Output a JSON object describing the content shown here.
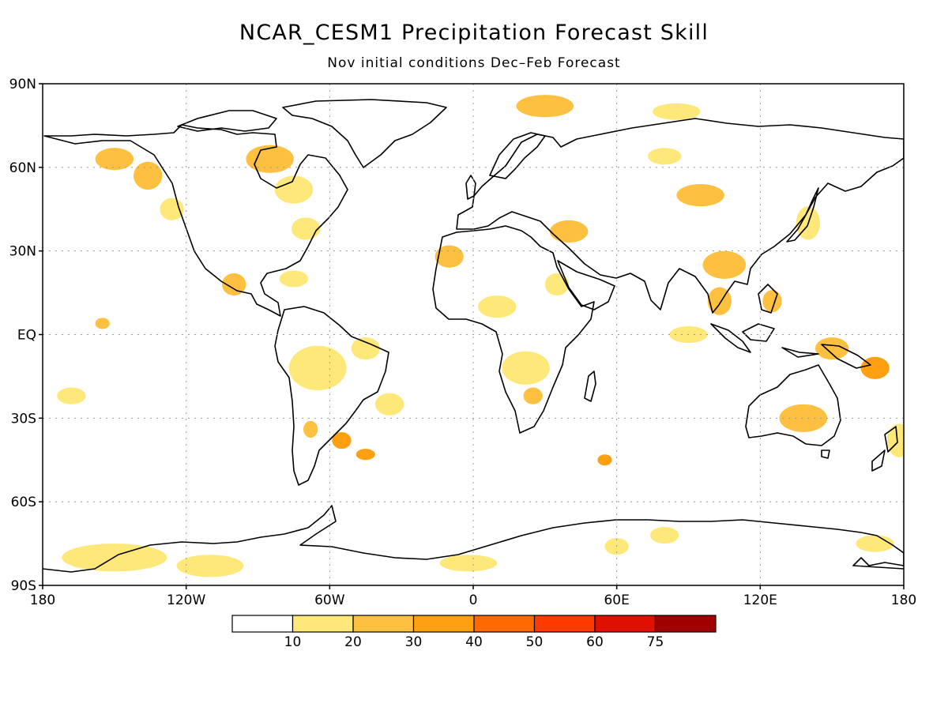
{
  "title": "NCAR_CESM1 Precipitation Forecast Skill",
  "subtitle": "Nov initial conditions   Dec–Feb Forecast",
  "map": {
    "lon_range": [
      -180,
      180
    ],
    "lat_range": [
      -90,
      90
    ],
    "grid": "dotted",
    "lat_ticks": [
      {
        "lat": 90,
        "label": "90N"
      },
      {
        "lat": 60,
        "label": "60N"
      },
      {
        "lat": 30,
        "label": "30N"
      },
      {
        "lat": 0,
        "label": "EQ"
      },
      {
        "lat": -30,
        "label": "30S"
      },
      {
        "lat": -60,
        "label": "60S"
      },
      {
        "lat": -90,
        "label": "90S"
      }
    ],
    "lon_ticks": [
      {
        "lon": -180,
        "label": "180"
      },
      {
        "lon": -120,
        "label": "120W"
      },
      {
        "lon": -60,
        "label": "60W"
      },
      {
        "lon": 0,
        "label": "0"
      },
      {
        "lon": 60,
        "label": "60E"
      },
      {
        "lon": 120,
        "label": "120E"
      },
      {
        "lon": 180,
        "label": "180"
      }
    ]
  },
  "colorbar": {
    "bins": [
      {
        "color": "#ffffff"
      },
      {
        "color": "#fee87a"
      },
      {
        "color": "#fec040"
      },
      {
        "color": "#fea010"
      },
      {
        "color": "#fe6a00"
      },
      {
        "color": "#fe3a00"
      },
      {
        "color": "#e01000"
      },
      {
        "color": "#a00000"
      }
    ],
    "labels": [
      "10",
      "20",
      "30",
      "40",
      "50",
      "60",
      "75"
    ]
  },
  "skill_regions": [
    {
      "lon": -150,
      "lat": 63,
      "rx": 8,
      "ry": 4,
      "level": 2
    },
    {
      "lon": -136,
      "lat": 57,
      "rx": 6,
      "ry": 5,
      "level": 2
    },
    {
      "lon": -126,
      "lat": 45,
      "rx": 5,
      "ry": 4,
      "level": 1
    },
    {
      "lon": -85,
      "lat": 63,
      "rx": 10,
      "ry": 5,
      "level": 2
    },
    {
      "lon": -75,
      "lat": 52,
      "rx": 8,
      "ry": 5,
      "level": 1
    },
    {
      "lon": -70,
      "lat": 38,
      "rx": 6,
      "ry": 4,
      "level": 1
    },
    {
      "lon": -100,
      "lat": 18,
      "rx": 5,
      "ry": 4,
      "level": 2
    },
    {
      "lon": -75,
      "lat": 20,
      "rx": 6,
      "ry": 3,
      "level": 1
    },
    {
      "lon": -155,
      "lat": 4,
      "rx": 3,
      "ry": 2,
      "level": 2
    },
    {
      "lon": -65,
      "lat": -12,
      "rx": 12,
      "ry": 8,
      "level": 1
    },
    {
      "lon": -45,
      "lat": -5,
      "rx": 6,
      "ry": 4,
      "level": 1
    },
    {
      "lon": -55,
      "lat": -38,
      "rx": 4,
      "ry": 3,
      "level": 3
    },
    {
      "lon": -68,
      "lat": -34,
      "rx": 3,
      "ry": 3,
      "level": 2
    },
    {
      "lon": -168,
      "lat": -22,
      "rx": 6,
      "ry": 3,
      "level": 1
    },
    {
      "lon": -35,
      "lat": -25,
      "rx": 6,
      "ry": 4,
      "level": 1
    },
    {
      "lon": 30,
      "lat": 82,
      "rx": 12,
      "ry": 4,
      "level": 2
    },
    {
      "lon": 85,
      "lat": 80,
      "rx": 10,
      "ry": 3,
      "level": 1
    },
    {
      "lon": 80,
      "lat": 64,
      "rx": 7,
      "ry": 3,
      "level": 1
    },
    {
      "lon": 95,
      "lat": 50,
      "rx": 10,
      "ry": 4,
      "level": 2
    },
    {
      "lon": 40,
      "lat": 37,
      "rx": 8,
      "ry": 4,
      "level": 2
    },
    {
      "lon": -10,
      "lat": 28,
      "rx": 6,
      "ry": 4,
      "level": 2
    },
    {
      "lon": 10,
      "lat": 10,
      "rx": 8,
      "ry": 4,
      "level": 1
    },
    {
      "lon": 22,
      "lat": -12,
      "rx": 10,
      "ry": 6,
      "level": 1
    },
    {
      "lon": 35,
      "lat": 18,
      "rx": 5,
      "ry": 4,
      "level": 1
    },
    {
      "lon": 105,
      "lat": 25,
      "rx": 9,
      "ry": 5,
      "level": 2
    },
    {
      "lon": 103,
      "lat": 12,
      "rx": 5,
      "ry": 5,
      "level": 2
    },
    {
      "lon": 125,
      "lat": 12,
      "rx": 4,
      "ry": 4,
      "level": 2
    },
    {
      "lon": 140,
      "lat": 40,
      "rx": 5,
      "ry": 6,
      "level": 1
    },
    {
      "lon": 150,
      "lat": -5,
      "rx": 7,
      "ry": 4,
      "level": 2
    },
    {
      "lon": 168,
      "lat": -12,
      "rx": 6,
      "ry": 4,
      "level": 3
    },
    {
      "lon": 138,
      "lat": -30,
      "rx": 10,
      "ry": 5,
      "level": 2
    },
    {
      "lon": 178,
      "lat": -38,
      "rx": 5,
      "ry": 6,
      "level": 1
    },
    {
      "lon": 55,
      "lat": -45,
      "rx": 3,
      "ry": 2,
      "level": 3
    },
    {
      "lon": 90,
      "lat": 0,
      "rx": 8,
      "ry": 3,
      "level": 1
    },
    {
      "lon": -150,
      "lat": -80,
      "rx": 22,
      "ry": 5,
      "level": 1
    },
    {
      "lon": -110,
      "lat": -83,
      "rx": 14,
      "ry": 4,
      "level": 1
    },
    {
      "lon": -2,
      "lat": -82,
      "rx": 12,
      "ry": 3,
      "level": 1
    },
    {
      "lon": 60,
      "lat": -76,
      "rx": 5,
      "ry": 3,
      "level": 1
    },
    {
      "lon": 80,
      "lat": -72,
      "rx": 6,
      "ry": 3,
      "level": 1
    },
    {
      "lon": 168,
      "lat": -75,
      "rx": 8,
      "ry": 3,
      "level": 1
    },
    {
      "lon": 25,
      "lat": -22,
      "rx": 4,
      "ry": 3,
      "level": 2
    },
    {
      "lon": -45,
      "lat": -43,
      "rx": 4,
      "ry": 2,
      "level": 3
    }
  ]
}
